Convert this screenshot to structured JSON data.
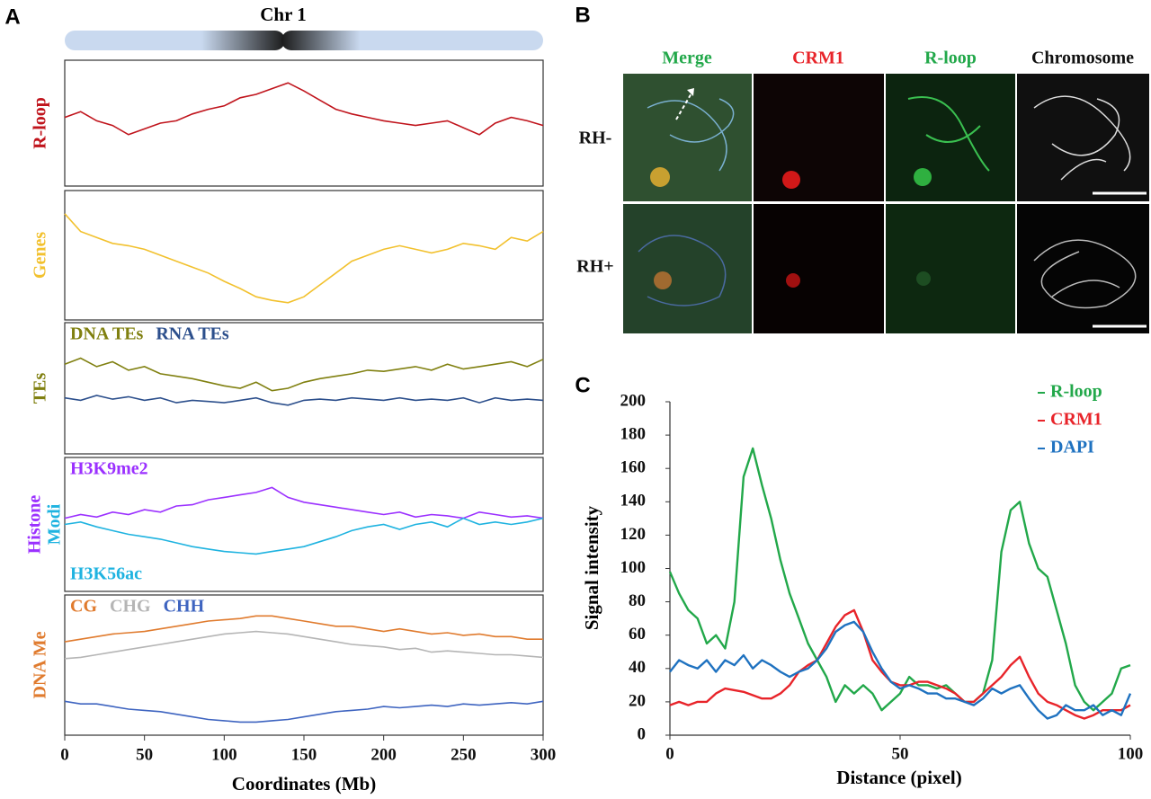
{
  "panel_labels": [
    "A",
    "B",
    "C"
  ],
  "images": {
    "columns": [
      "Merge",
      "CRM1",
      "R-loop",
      "Chromosome"
    ],
    "rows": [
      "RH-",
      "RH+"
    ]
  },
  "chart_data": [
    {
      "type": "track",
      "title": "Chr 1",
      "xlabel": "Coordinates (Mb)",
      "xlim": [
        0,
        300
      ],
      "xticks": [
        0,
        50,
        100,
        150,
        200,
        250,
        300
      ],
      "x": [
        0,
        10,
        20,
        30,
        40,
        50,
        60,
        70,
        80,
        90,
        100,
        110,
        120,
        130,
        140,
        150,
        160,
        170,
        180,
        190,
        200,
        210,
        220,
        230,
        240,
        250,
        260,
        270,
        280,
        290,
        300
      ],
      "tracks": [
        {
          "ylabel": "R-loop",
          "ylim": [
            0,
            100
          ],
          "series": [
            {
              "color": "#c0141c",
              "values": [
                55,
                60,
                52,
                48,
                40,
                45,
                50,
                52,
                58,
                62,
                65,
                72,
                75,
                80,
                85,
                78,
                70,
                62,
                58,
                55,
                52,
                50,
                48,
                50,
                52,
                46,
                40,
                50,
                55,
                52,
                48
              ]
            }
          ]
        },
        {
          "ylabel": "Genes",
          "ylim": [
            0,
            100
          ],
          "series": [
            {
              "color": "#f2c12e",
              "values": [
                85,
                70,
                65,
                60,
                58,
                55,
                50,
                45,
                40,
                35,
                28,
                22,
                15,
                12,
                10,
                15,
                25,
                35,
                45,
                50,
                55,
                58,
                55,
                52,
                55,
                60,
                58,
                55,
                65,
                62,
                70
              ]
            }
          ]
        },
        {
          "ylabel": "TEs",
          "ylim": [
            0,
            100
          ],
          "series": [
            {
              "name": "DNA TEs",
              "color": "#808010",
              "values": [
                70,
                75,
                68,
                72,
                65,
                68,
                62,
                60,
                58,
                55,
                52,
                50,
                55,
                48,
                50,
                55,
                58,
                60,
                62,
                65,
                64,
                66,
                68,
                65,
                70,
                66,
                68,
                70,
                72,
                68,
                74
              ]
            },
            {
              "name": "RNA TEs",
              "color": "#2c4f8c",
              "values": [
                42,
                40,
                44,
                41,
                43,
                40,
                42,
                38,
                40,
                39,
                38,
                40,
                42,
                38,
                36,
                40,
                41,
                40,
                42,
                41,
                40,
                42,
                40,
                41,
                40,
                42,
                38,
                42,
                40,
                41,
                40
              ]
            }
          ]
        },
        {
          "ylabel": [
            "Histone",
            "Modi"
          ],
          "ylim": [
            0,
            100
          ],
          "series": [
            {
              "name": "H3K9me2",
              "color": "#9b30ff",
              "values": [
                55,
                58,
                56,
                60,
                58,
                62,
                60,
                65,
                66,
                70,
                72,
                74,
                76,
                80,
                72,
                68,
                66,
                64,
                62,
                60,
                58,
                60,
                56,
                58,
                57,
                55,
                60,
                58,
                56,
                57,
                55
              ]
            },
            {
              "name": "H3K56ac",
              "color": "#1fb3e0",
              "values": [
                50,
                52,
                48,
                45,
                42,
                40,
                38,
                35,
                32,
                30,
                28,
                27,
                26,
                28,
                30,
                32,
                36,
                40,
                45,
                48,
                50,
                46,
                50,
                52,
                48,
                55,
                50,
                52,
                50,
                52,
                55
              ]
            }
          ]
        },
        {
          "ylabel": "DNA Me",
          "ylim": [
            0,
            100
          ],
          "series": [
            {
              "name": "CG",
              "color": "#e07b2e",
              "values": [
                68,
                70,
                72,
                74,
                75,
                76,
                78,
                80,
                82,
                84,
                85,
                86,
                88,
                88,
                86,
                84,
                82,
                80,
                80,
                78,
                76,
                78,
                76,
                74,
                75,
                73,
                74,
                72,
                72,
                70,
                70
              ]
            },
            {
              "name": "CHG",
              "color": "#b5b5b5",
              "values": [
                55,
                56,
                58,
                60,
                62,
                64,
                66,
                68,
                70,
                72,
                74,
                75,
                76,
                75,
                74,
                72,
                70,
                68,
                66,
                65,
                64,
                62,
                63,
                60,
                61,
                60,
                59,
                58,
                58,
                57,
                56
              ]
            },
            {
              "name": "CHH",
              "color": "#3e64c0",
              "values": [
                22,
                20,
                20,
                18,
                16,
                15,
                14,
                12,
                10,
                8,
                7,
                6,
                6,
                7,
                8,
                10,
                12,
                14,
                15,
                16,
                18,
                17,
                18,
                19,
                18,
                20,
                19,
                20,
                21,
                20,
                22
              ]
            }
          ]
        }
      ]
    },
    {
      "type": "line",
      "xlabel": "Distance (pixel)",
      "ylabel": "Signal intensity",
      "xlim": [
        0,
        100
      ],
      "xticks": [
        0,
        50,
        100
      ],
      "ylim": [
        0,
        200
      ],
      "yticks": [
        0,
        20,
        40,
        60,
        80,
        100,
        120,
        140,
        160,
        180,
        200
      ],
      "x": [
        0,
        2,
        4,
        6,
        8,
        10,
        12,
        14,
        16,
        18,
        20,
        22,
        24,
        26,
        28,
        30,
        32,
        34,
        36,
        38,
        40,
        42,
        44,
        46,
        48,
        50,
        52,
        54,
        56,
        58,
        60,
        62,
        64,
        66,
        68,
        70,
        72,
        74,
        76,
        78,
        80,
        82,
        84,
        86,
        88,
        90,
        92,
        94,
        96,
        98,
        100
      ],
      "series": [
        {
          "name": "R-loop",
          "color": "#22a84a",
          "values": [
            98,
            85,
            75,
            70,
            55,
            60,
            52,
            80,
            155,
            172,
            150,
            130,
            105,
            85,
            70,
            55,
            45,
            35,
            20,
            30,
            25,
            30,
            25,
            15,
            20,
            25,
            35,
            30,
            30,
            28,
            30,
            25,
            20,
            20,
            25,
            45,
            110,
            135,
            140,
            115,
            100,
            95,
            75,
            55,
            30,
            20,
            15,
            20,
            25,
            40,
            42
          ]
        },
        {
          "name": "CRM1",
          "color": "#e8242a",
          "values": [
            18,
            20,
            18,
            20,
            20,
            25,
            28,
            27,
            26,
            24,
            22,
            22,
            25,
            30,
            38,
            42,
            45,
            55,
            65,
            72,
            75,
            62,
            45,
            38,
            32,
            30,
            30,
            32,
            32,
            30,
            28,
            25,
            20,
            20,
            25,
            30,
            35,
            42,
            47,
            35,
            25,
            20,
            18,
            15,
            12,
            10,
            12,
            15,
            15,
            15,
            18
          ]
        },
        {
          "name": "DAPI",
          "color": "#1f72c0",
          "values": [
            38,
            45,
            42,
            40,
            45,
            38,
            45,
            42,
            48,
            40,
            45,
            42,
            38,
            35,
            38,
            40,
            45,
            52,
            62,
            66,
            68,
            62,
            50,
            40,
            32,
            28,
            30,
            28,
            25,
            25,
            22,
            22,
            20,
            18,
            22,
            28,
            25,
            28,
            30,
            22,
            15,
            10,
            12,
            18,
            15,
            15,
            18,
            12,
            15,
            12,
            25
          ]
        }
      ]
    }
  ]
}
